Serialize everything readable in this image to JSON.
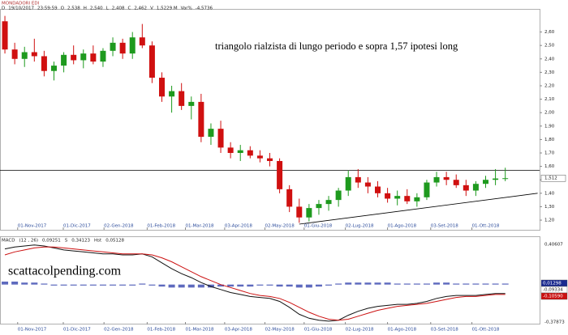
{
  "chart_data": [
    {
      "type": "candlestick",
      "title": "MONDADORI EDI",
      "info": [
        "D",
        "19/10/2017",
        "23:59:59",
        "O",
        "2,538",
        "H",
        "2,540",
        "L",
        "2,408",
        "C",
        "2,462",
        "V",
        "1,5229 M",
        "Var%",
        "-4,5736"
      ],
      "annotation": "triangolo rialzista di lungo periodo e sopra 1,57 ipotesi long",
      "up_color": "#1e9a1e",
      "down_color": "#d01010",
      "open": [
        2.68,
        2.47,
        2.4,
        2.45,
        2.42,
        2.31,
        2.35,
        2.43,
        2.39,
        2.44,
        2.38,
        2.46,
        2.52,
        2.44,
        2.56,
        2.5,
        2.26,
        2.12,
        2.16,
        2.05,
        2.08,
        1.82,
        1.88,
        1.74,
        1.7,
        1.72,
        1.68,
        1.66,
        1.64,
        1.43,
        1.3,
        1.22,
        1.29,
        1.32,
        1.35,
        1.42,
        1.52,
        1.48,
        1.45,
        1.4,
        1.36,
        1.38,
        1.34,
        1.37,
        1.48,
        1.52,
        1.5,
        1.46,
        1.42,
        1.47,
        1.5,
        1.51
      ],
      "high": [
        2.72,
        2.52,
        2.49,
        2.55,
        2.46,
        2.38,
        2.45,
        2.5,
        2.47,
        2.5,
        2.48,
        2.56,
        2.55,
        2.6,
        2.66,
        2.53,
        2.3,
        2.2,
        2.22,
        2.12,
        2.14,
        1.92,
        1.94,
        1.78,
        1.76,
        1.75,
        1.72,
        1.7,
        1.66,
        1.46,
        1.36,
        1.32,
        1.35,
        1.38,
        1.44,
        1.57,
        1.58,
        1.52,
        1.49,
        1.44,
        1.42,
        1.43,
        1.4,
        1.5,
        1.56,
        1.56,
        1.54,
        1.5,
        1.49,
        1.53,
        1.58,
        1.59
      ],
      "low": [
        2.44,
        2.36,
        2.34,
        2.38,
        2.27,
        2.24,
        2.3,
        2.36,
        2.33,
        2.36,
        2.34,
        2.42,
        2.4,
        2.4,
        2.48,
        2.22,
        2.08,
        2.0,
        2.02,
        1.95,
        1.78,
        1.76,
        1.7,
        1.66,
        1.64,
        1.66,
        1.63,
        1.6,
        1.4,
        1.26,
        1.18,
        1.19,
        1.24,
        1.27,
        1.3,
        1.38,
        1.44,
        1.4,
        1.37,
        1.33,
        1.31,
        1.32,
        1.3,
        1.35,
        1.45,
        1.46,
        1.44,
        1.38,
        1.38,
        1.44,
        1.46,
        1.49
      ],
      "close": [
        2.47,
        2.4,
        2.45,
        2.42,
        2.31,
        2.35,
        2.43,
        2.39,
        2.44,
        2.38,
        2.46,
        2.52,
        2.44,
        2.56,
        2.5,
        2.26,
        2.12,
        2.16,
        2.05,
        2.08,
        1.82,
        1.88,
        1.74,
        1.7,
        1.72,
        1.68,
        1.66,
        1.64,
        1.43,
        1.3,
        1.22,
        1.29,
        1.32,
        1.35,
        1.42,
        1.52,
        1.48,
        1.45,
        1.4,
        1.36,
        1.38,
        1.34,
        1.37,
        1.48,
        1.52,
        1.5,
        1.46,
        1.42,
        1.47,
        1.5,
        1.51,
        1.512
      ],
      "horizontal_line": 1.57,
      "trendline": {
        "x": [
          30.5,
          54.8
        ],
        "y": [
          1.17,
          1.4
        ]
      },
      "last_price": {
        "value": 1.512,
        "label": "1,512"
      },
      "xlim": [
        0,
        55
      ],
      "xticks": [
        {
          "value": 1.8,
          "label": "01-Nov-2017"
        },
        {
          "value": 6.45,
          "label": "01-Dic-2017"
        },
        {
          "value": 10.6,
          "label": "02-Gen-2018"
        },
        {
          "value": 15,
          "label": "01-Feb-2018"
        },
        {
          "value": 18.9,
          "label": "01-Mar-2018"
        },
        {
          "value": 22.9,
          "label": "03-Apr-2018"
        },
        {
          "value": 27,
          "label": "02-May-2018"
        },
        {
          "value": 31,
          "label": "01-Giu-2018"
        },
        {
          "value": 35.2,
          "label": "02-Lug-2018"
        },
        {
          "value": 39.5,
          "label": "01-Ago-2018"
        },
        {
          "value": 43.9,
          "label": "03-Set-2018"
        },
        {
          "value": 48.1,
          "label": "01-Ott-2018"
        }
      ],
      "ylim": [
        1.128,
        2.766
      ],
      "yticks": [
        {
          "value": 1.2,
          "label": "1,20"
        },
        {
          "value": 1.3,
          "label": "1,30"
        },
        {
          "value": 1.4,
          "label": "1,40"
        },
        {
          "value": 1.5,
          "label": "1,50"
        },
        {
          "value": 1.6,
          "label": "1,60"
        },
        {
          "value": 1.7,
          "label": "1,70"
        },
        {
          "value": 1.8,
          "label": "1,80"
        },
        {
          "value": 1.9,
          "label": "1,90"
        },
        {
          "value": 2.0,
          "label": "2,00"
        },
        {
          "value": 2.1,
          "label": "2,10"
        },
        {
          "value": 2.2,
          "label": "2,20"
        },
        {
          "value": 2.3,
          "label": "2,30"
        },
        {
          "value": 2.4,
          "label": "2,40"
        },
        {
          "value": 2.5,
          "label": "2,50"
        },
        {
          "value": 2.6,
          "label": "2,60"
        }
      ]
    },
    {
      "type": "macd",
      "info": [
        "MACD",
        "(12 , 26)",
        "0,09251",
        "S",
        "0,34123",
        "Hst",
        "0,05128"
      ],
      "watermark": "scattacolpending.com",
      "series": [
        {
          "name": "MACD",
          "color": "#111111",
          "values": [
            0.36,
            0.38,
            0.39,
            0.4,
            0.39,
            0.37,
            0.35,
            0.34,
            0.33,
            0.32,
            0.31,
            0.31,
            0.3,
            0.3,
            0.31,
            0.28,
            0.22,
            0.16,
            0.11,
            0.07,
            0.02,
            -0.02,
            -0.05,
            -0.08,
            -0.1,
            -0.12,
            -0.13,
            -0.14,
            -0.17,
            -0.23,
            -0.3,
            -0.34,
            -0.36,
            -0.37,
            -0.36,
            -0.31,
            -0.27,
            -0.24,
            -0.22,
            -0.21,
            -0.2,
            -0.2,
            -0.19,
            -0.17,
            -0.14,
            -0.12,
            -0.11,
            -0.11,
            -0.11,
            -0.1,
            -0.09,
            -0.09
          ]
        },
        {
          "name": "S",
          "color": "#cc1111",
          "values": [
            0.3,
            0.33,
            0.35,
            0.37,
            0.38,
            0.38,
            0.37,
            0.36,
            0.35,
            0.34,
            0.33,
            0.32,
            0.31,
            0.31,
            0.31,
            0.3,
            0.27,
            0.23,
            0.18,
            0.13,
            0.08,
            0.04,
            0.0,
            -0.03,
            -0.06,
            -0.09,
            -0.11,
            -0.12,
            -0.14,
            -0.18,
            -0.23,
            -0.28,
            -0.32,
            -0.35,
            -0.36,
            -0.35,
            -0.32,
            -0.29,
            -0.26,
            -0.24,
            -0.22,
            -0.21,
            -0.2,
            -0.19,
            -0.17,
            -0.15,
            -0.13,
            -0.12,
            -0.12,
            -0.11,
            -0.1,
            -0.1
          ]
        }
      ],
      "histogram": {
        "color": "#2838a8",
        "values": [
          0.03,
          0.03,
          0.02,
          0.02,
          0.01,
          -0.01,
          -0.01,
          -0.01,
          -0.01,
          -0.01,
          -0.01,
          -0.01,
          -0.01,
          -0.01,
          0.01,
          -0.01,
          -0.02,
          -0.03,
          -0.03,
          -0.03,
          -0.03,
          -0.03,
          -0.02,
          -0.02,
          -0.02,
          -0.02,
          -0.01,
          -0.01,
          -0.02,
          -0.02,
          -0.03,
          -0.03,
          -0.02,
          -0.01,
          0.01,
          0.02,
          0.02,
          0.02,
          0.02,
          0.02,
          0.01,
          0.01,
          0.01,
          0.01,
          0.02,
          0.02,
          0.01,
          0.01,
          0.01,
          0.01,
          0.01,
          0.01
        ]
      },
      "value_boxes": [
        {
          "value": 0.01298,
          "label": "0,01298",
          "color": "#1a2a90"
        },
        {
          "value": -0.09334,
          "label": "-0,09334",
          "color": "#ffffff"
        },
        {
          "value": -0.1059,
          "label": "-0,10590",
          "color": "#cc1111"
        }
      ],
      "xlim": [
        0,
        55
      ],
      "xticks": [
        {
          "value": 1.8,
          "label": "01-Nov-2017"
        },
        {
          "value": 6.45,
          "label": "01-Dic-2017"
        },
        {
          "value": 10.6,
          "label": "02-Gen-2018"
        },
        {
          "value": 15,
          "label": "01-Feb-2018"
        },
        {
          "value": 18.9,
          "label": "01-Mar-2018"
        },
        {
          "value": 22.9,
          "label": "03-Apr-2018"
        },
        {
          "value": 27,
          "label": "02-May-2018"
        },
        {
          "value": 31,
          "label": "01-Giu-2018"
        },
        {
          "value": 35.2,
          "label": "02-Lug-2018"
        },
        {
          "value": 39.5,
          "label": "01-Ago-2018"
        },
        {
          "value": 43.9,
          "label": "03-Set-2018"
        },
        {
          "value": 48.1,
          "label": "01-Ott-2018"
        }
      ],
      "ylim": [
        -0.37873,
        0.40607
      ],
      "yticks": [
        {
          "value": 0.40607,
          "label": "0,40607"
        },
        {
          "value": -0.37873,
          "label": "-0,37873"
        }
      ]
    }
  ]
}
